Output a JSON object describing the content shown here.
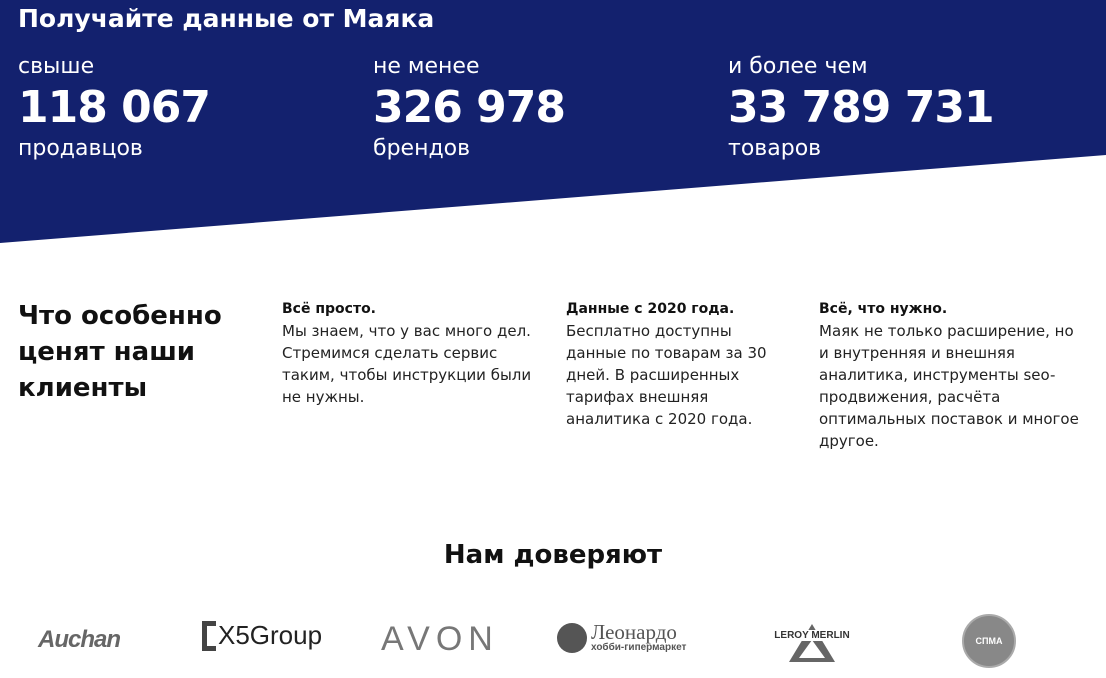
{
  "hero": {
    "title": "Получайте данные от Маяка",
    "stats": [
      {
        "pre": "свыше",
        "num": "118 067",
        "post": "продавцов"
      },
      {
        "pre": "не менее",
        "num": "326 978",
        "post": "брендов"
      },
      {
        "pre": "и более чем",
        "num": "33 789 731",
        "post": "товаров"
      }
    ],
    "color": "#13216e"
  },
  "features": {
    "title": "Что особенно ценят наши клиенты",
    "items": [
      {
        "title": "Всё просто.",
        "text": "Мы знаем, что у вас много дел. Стремимся сделать сервис таким, чтобы инструкции были не нужны."
      },
      {
        "title": "Данные с 2020 года.",
        "text": "Бесплатно доступны данные по товарам за 30 дней. В расширенных тарифах внешняя аналитика с 2020 года."
      },
      {
        "title": "Всё, что нужно.",
        "text": "Маяк не только расширение, но и внутренняя и внешняя аналитика, инструменты seo-продвижения, расчёта оптимальных поставок и многое другое."
      }
    ]
  },
  "trust": {
    "title": "Нам доверяют",
    "logos": [
      "Auchan",
      "X5Group",
      "AVON",
      "Леонардо",
      "хобби-гипермаркет",
      "LEROY MERLIN",
      "СПМА"
    ]
  }
}
